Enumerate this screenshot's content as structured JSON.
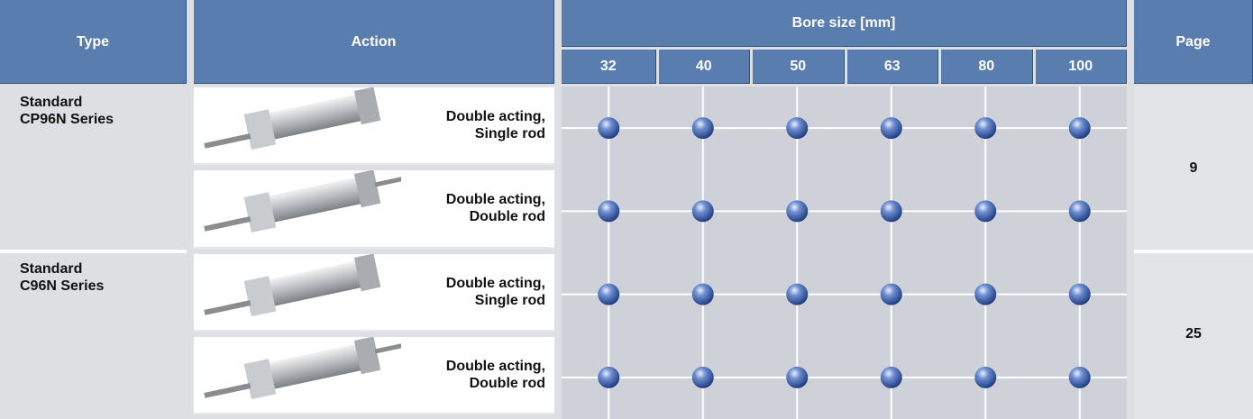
{
  "header": {
    "type": "Type",
    "action": "Action",
    "bore_size": "Bore size [mm]",
    "bore_sizes": [
      32,
      40,
      50,
      63,
      80,
      100
    ],
    "page": "Page"
  },
  "groups": [
    {
      "type_lines": [
        "Standard",
        "CP96N Series"
      ],
      "page": 9,
      "rows": [
        {
          "action_lines": [
            "Double acting,",
            "Single rod"
          ],
          "available": [
            true,
            true,
            true,
            true,
            true,
            true
          ]
        },
        {
          "action_lines": [
            "Double acting,",
            "Double rod"
          ],
          "available": [
            true,
            true,
            true,
            true,
            true,
            true
          ]
        }
      ]
    },
    {
      "type_lines": [
        "Standard",
        "C96N Series"
      ],
      "page": 25,
      "rows": [
        {
          "action_lines": [
            "Double acting,",
            "Single rod"
          ],
          "available": [
            true,
            true,
            true,
            true,
            true,
            true
          ]
        },
        {
          "action_lines": [
            "Double acting,",
            "Double rod"
          ],
          "available": [
            true,
            true,
            true,
            true,
            true,
            true
          ]
        }
      ]
    }
  ]
}
